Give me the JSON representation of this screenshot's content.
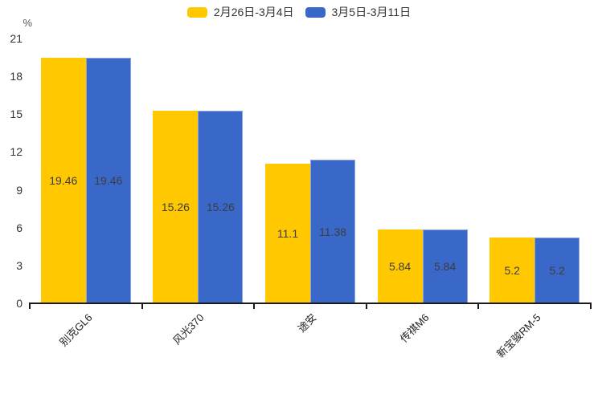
{
  "chart_data": {
    "type": "bar",
    "title": "",
    "ylabel": "%",
    "categories": [
      "别克GL6",
      "风光370",
      "途安",
      "传祺M6",
      "新宝骏RM-5"
    ],
    "series": [
      {
        "name": "2月26日-3月4日",
        "color": "#FFC800",
        "values": [
          19.46,
          15.26,
          11.1,
          5.84,
          5.2
        ],
        "labels": [
          "19.46",
          "15.26",
          "11.1",
          "5.84",
          "5.2"
        ]
      },
      {
        "name": "3月5日-3月11日",
        "color": "#3A68C8",
        "values": [
          19.46,
          15.26,
          11.38,
          5.84,
          5.2
        ],
        "labels": [
          "19.46",
          "15.26",
          "11.38",
          "5.84",
          "5.2"
        ]
      }
    ],
    "y_ticks": [
      0,
      3,
      6,
      9,
      12,
      15,
      18,
      21
    ],
    "ylim": [
      0,
      21
    ],
    "grid": false,
    "legend_position": "top",
    "bar_value_label_position": "inside-center",
    "x_label_rotation": -45
  }
}
